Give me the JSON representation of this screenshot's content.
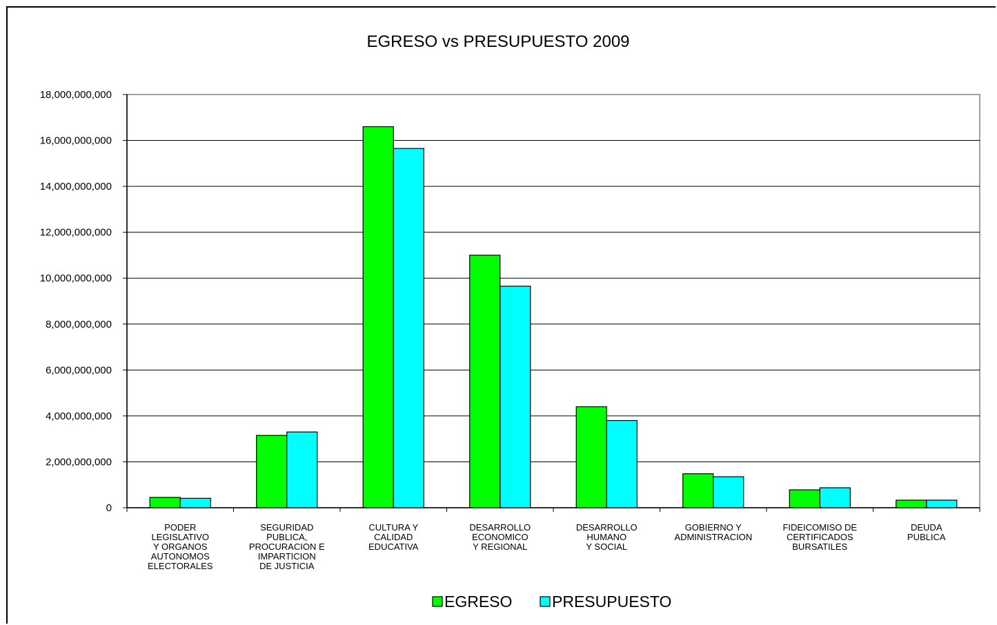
{
  "chart_data": {
    "type": "bar",
    "title": "EGRESO vs PRESUPUESTO 2009",
    "xlabel": "",
    "ylabel": "",
    "ylim": [
      0,
      18000000000
    ],
    "yticks": [
      "0",
      "2,000,000,000",
      "4,000,000,000",
      "6,000,000,000",
      "8,000,000,000",
      "10,000,000,000",
      "12,000,000,000",
      "14,000,000,000",
      "16,000,000,000",
      "18,000,000,000"
    ],
    "ytick_values": [
      0,
      2000000000,
      4000000000,
      6000000000,
      8000000000,
      10000000000,
      12000000000,
      14000000000,
      16000000000,
      18000000000
    ],
    "grid": true,
    "legend_position": "bottom",
    "categories": [
      [
        "PODER",
        "LEGISLATIVO",
        "Y ORGANOS",
        "AUTONOMOS",
        "ELECTORALES"
      ],
      [
        "SEGURIDAD",
        "PUBLICA,",
        "PROCURACION E",
        "IMPARTICION",
        "DE JUSTICIA"
      ],
      [
        "CULTURA Y",
        "CALIDAD",
        "EDUCATIVA"
      ],
      [
        "DESARROLLO",
        "ECONOMICO",
        "Y REGIONAL"
      ],
      [
        "DESARROLLO",
        "HUMANO",
        "Y SOCIAL"
      ],
      [
        "GOBIERNO Y",
        "ADMINISTRACION"
      ],
      [
        "FIDEICOMISO DE",
        "CERTIFICADOS",
        "BURSATILES"
      ],
      [
        "DEUDA",
        "PUBLICA"
      ]
    ],
    "series": [
      {
        "name": "EGRESO",
        "color": "#00ff00",
        "values": [
          450000000,
          3150000000,
          16600000000,
          11000000000,
          4400000000,
          1480000000,
          780000000,
          330000000
        ]
      },
      {
        "name": "PRESUPUESTO",
        "color": "#00ffff",
        "values": [
          410000000,
          3300000000,
          15650000000,
          9650000000,
          3800000000,
          1350000000,
          870000000,
          330000000
        ]
      }
    ]
  }
}
